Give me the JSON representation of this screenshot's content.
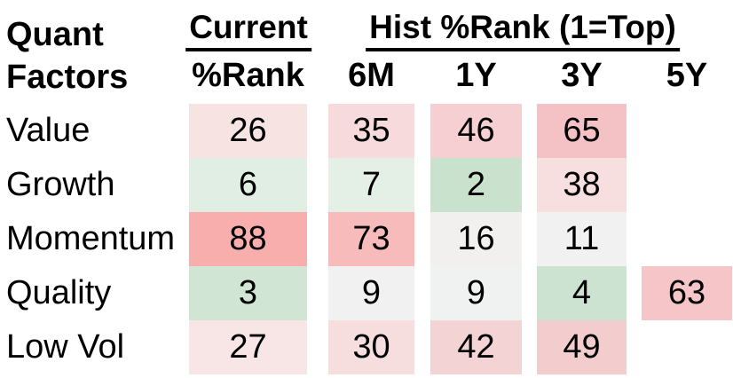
{
  "header": {
    "corner_line1": "Quant",
    "corner_line2": "Factors",
    "group_current": "Current",
    "group_hist": "Hist %Rank (1=Top)"
  },
  "columns": [
    "%Rank",
    "6M",
    "1Y",
    "3Y",
    "5Y"
  ],
  "table": {
    "rows": [
      {
        "label": "Value",
        "cells": [
          {
            "v": 26,
            "bg": "#F8E3E3"
          },
          {
            "v": 35,
            "bg": "#F7DBDC"
          },
          {
            "v": 46,
            "bg": "#F5CFD1"
          },
          {
            "v": 65,
            "bg": "#F4C2C4"
          }
        ]
      },
      {
        "label": "Growth",
        "cells": [
          {
            "v": 6,
            "bg": "#E1EEE3"
          },
          {
            "v": 7,
            "bg": "#E4F0E5"
          },
          {
            "v": 2,
            "bg": "#C8E2CD"
          },
          {
            "v": 38,
            "bg": "#F7DEDF"
          }
        ]
      },
      {
        "label": "Momentum",
        "cells": [
          {
            "v": 88,
            "bg": "#F9AEAE"
          },
          {
            "v": 73,
            "bg": "#F7BBBB"
          },
          {
            "v": 16,
            "bg": "#F2EFEF"
          },
          {
            "v": 11,
            "bg": "#F1F1F2"
          }
        ]
      },
      {
        "label": "Quality",
        "cells": [
          {
            "v": 3,
            "bg": "#D0E5D3"
          },
          {
            "v": 9,
            "bg": "#F1F1F1"
          },
          {
            "v": 9,
            "bg": "#F0F1F1"
          },
          {
            "v": 4,
            "bg": "#CDE3D1"
          },
          {
            "v": 63,
            "bg": "#F5C5C7"
          }
        ]
      },
      {
        "label": "Low Vol",
        "cells": [
          {
            "v": 27,
            "bg": "#F8E6E6"
          },
          {
            "v": 30,
            "bg": "#F6DEDE"
          },
          {
            "v": 42,
            "bg": "#F4D3D4"
          },
          {
            "v": 49,
            "bg": "#F3CCCE"
          }
        ]
      }
    ]
  },
  "chart_data": {
    "type": "heatmap",
    "title": "Quant Factors",
    "column_groups": [
      {
        "label": "Current",
        "columns": [
          "%Rank"
        ]
      },
      {
        "label": "Hist %Rank (1=Top)",
        "columns": [
          "6M",
          "1Y",
          "3Y",
          "5Y"
        ]
      }
    ],
    "columns": [
      "Current %Rank",
      "6M",
      "1Y",
      "3Y",
      "5Y"
    ],
    "rows": [
      "Value",
      "Growth",
      "Momentum",
      "Quality",
      "Low Vol"
    ],
    "values": [
      [
        26,
        35,
        46,
        65,
        null
      ],
      [
        6,
        7,
        2,
        38,
        null
      ],
      [
        88,
        73,
        16,
        11,
        null
      ],
      [
        3,
        9,
        9,
        4,
        63
      ],
      [
        27,
        30,
        42,
        49,
        null
      ]
    ],
    "scale": {
      "note": "1=Top",
      "low_color": "#C8E2CD",
      "mid_color": "#F1F1F2",
      "high_color": "#F9AEAE",
      "description": "low percentile ranks shaded green, mid neutral, high shaded red"
    },
    "layout": {
      "grid": false,
      "legend": false,
      "empty_cells_blank": true
    }
  }
}
